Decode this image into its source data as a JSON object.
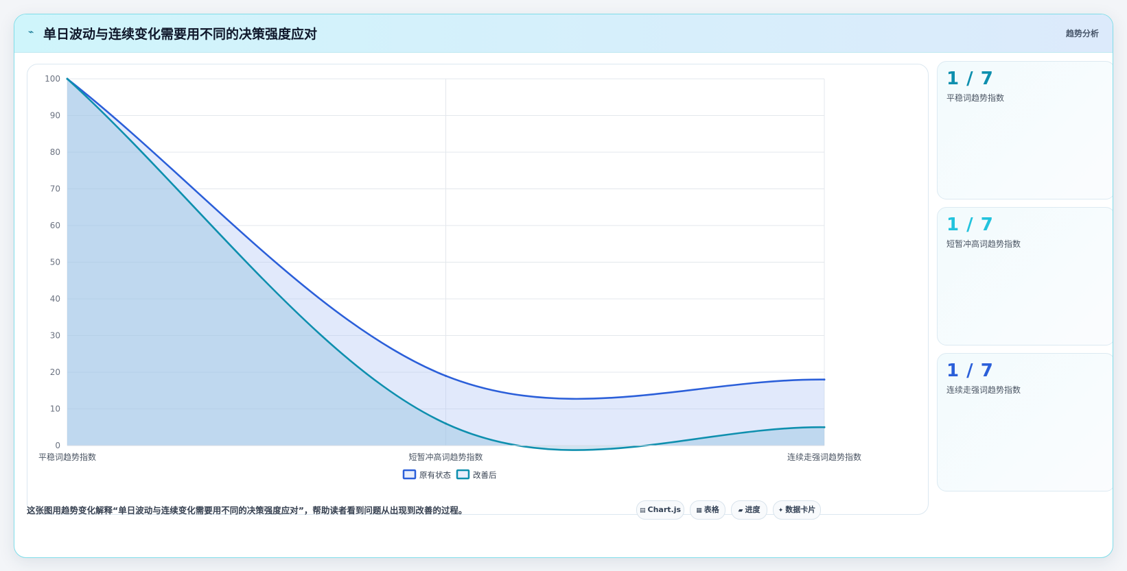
{
  "header": {
    "icon": "bolt-icon",
    "title": "单日波动与连续变化需要用不同的决策强度应对",
    "tag": "趋势分析"
  },
  "chart_data": {
    "type": "area",
    "categories": [
      "平稳词趋势指数",
      "短暂冲高词趋势指数",
      "连续走强词趋势指数"
    ],
    "series": [
      {
        "name": "原有状态",
        "values": [
          100,
          19,
          18
        ],
        "color": "#2b5fd9"
      },
      {
        "name": "改善后",
        "values": [
          100,
          6,
          5
        ],
        "color": "#0e8fae"
      }
    ],
    "ylim": [
      0,
      100
    ],
    "yticks": [
      0,
      10,
      20,
      30,
      40,
      50,
      60,
      70,
      80,
      90,
      100
    ],
    "grid": true,
    "legend": "bottom"
  },
  "side_cards": [
    {
      "value": "1 / 7",
      "label": "平稳词趋势指数",
      "color": "#0e8fae"
    },
    {
      "value": "1 / 7",
      "label": "短暂冲高词趋势指数",
      "color": "#22c3dd"
    },
    {
      "value": "1 / 7",
      "label": "连续走强词趋势指数",
      "color": "#2b5fd9"
    }
  ],
  "caption": "这张图用趋势变化解释“单日波动与连续变化需要用不同的决策强度应对”，帮助读者看到问题从出现到改善的过程。",
  "badges": [
    {
      "icon": "chart-icon",
      "glyph": "▤",
      "label": "Chart.js"
    },
    {
      "icon": "table-icon",
      "glyph": "▦",
      "label": "表格"
    },
    {
      "icon": "progress-icon",
      "glyph": "▰",
      "label": "进度"
    },
    {
      "icon": "card-icon",
      "glyph": "✦",
      "label": "数据卡片"
    }
  ]
}
